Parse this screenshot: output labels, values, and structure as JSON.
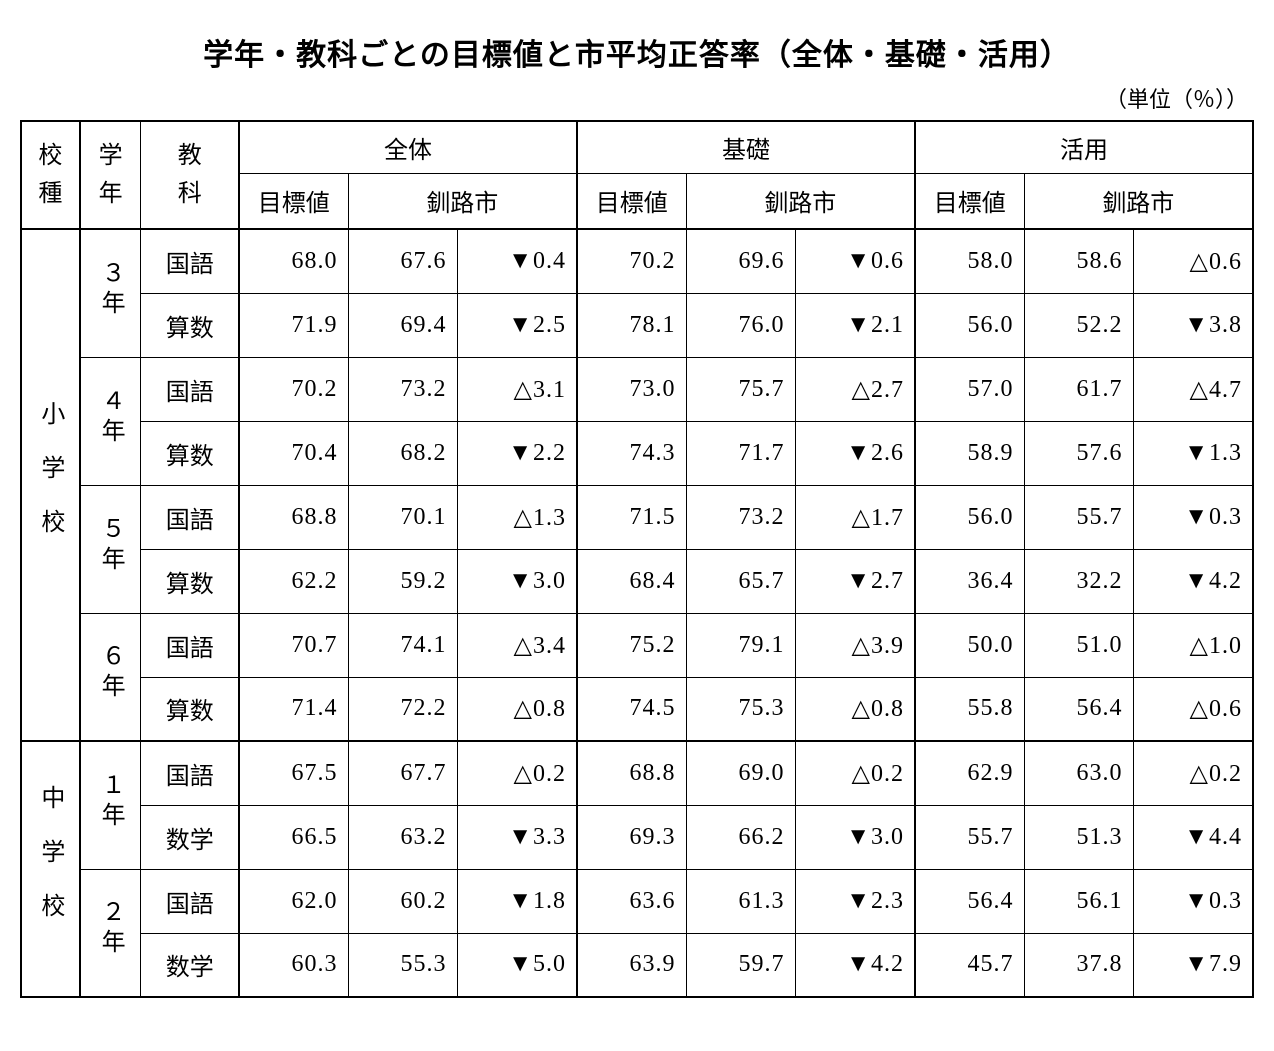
{
  "title": "学年・教科ごとの目標値と市平均正答率（全体・基礎・活用）",
  "unit": "（単位（％））",
  "header": {
    "school_type": "校種",
    "grade": "学年",
    "subject": "教科",
    "groups": [
      "全体",
      "基礎",
      "活用"
    ],
    "target": "目標値",
    "city": "釧路市"
  },
  "schools": [
    {
      "name": "小学校",
      "grades": [
        {
          "name": "３年",
          "rows": [
            {
              "subject": "国語",
              "zentai": {
                "target": "68.0",
                "city": "67.6",
                "diff": "▼0.4"
              },
              "kiso": {
                "target": "70.2",
                "city": "69.6",
                "diff": "▼0.6"
              },
              "katsuyo": {
                "target": "58.0",
                "city": "58.6",
                "diff": "△0.6"
              }
            },
            {
              "subject": "算数",
              "zentai": {
                "target": "71.9",
                "city": "69.4",
                "diff": "▼2.5"
              },
              "kiso": {
                "target": "78.1",
                "city": "76.0",
                "diff": "▼2.1"
              },
              "katsuyo": {
                "target": "56.0",
                "city": "52.2",
                "diff": "▼3.8"
              }
            }
          ]
        },
        {
          "name": "４年",
          "rows": [
            {
              "subject": "国語",
              "zentai": {
                "target": "70.2",
                "city": "73.2",
                "diff": "△3.1"
              },
              "kiso": {
                "target": "73.0",
                "city": "75.7",
                "diff": "△2.7"
              },
              "katsuyo": {
                "target": "57.0",
                "city": "61.7",
                "diff": "△4.7"
              }
            },
            {
              "subject": "算数",
              "zentai": {
                "target": "70.4",
                "city": "68.2",
                "diff": "▼2.2"
              },
              "kiso": {
                "target": "74.3",
                "city": "71.7",
                "diff": "▼2.6"
              },
              "katsuyo": {
                "target": "58.9",
                "city": "57.6",
                "diff": "▼1.3"
              }
            }
          ]
        },
        {
          "name": "５年",
          "rows": [
            {
              "subject": "国語",
              "zentai": {
                "target": "68.8",
                "city": "70.1",
                "diff": "△1.3"
              },
              "kiso": {
                "target": "71.5",
                "city": "73.2",
                "diff": "△1.7"
              },
              "katsuyo": {
                "target": "56.0",
                "city": "55.7",
                "diff": "▼0.3"
              }
            },
            {
              "subject": "算数",
              "zentai": {
                "target": "62.2",
                "city": "59.2",
                "diff": "▼3.0"
              },
              "kiso": {
                "target": "68.4",
                "city": "65.7",
                "diff": "▼2.7"
              },
              "katsuyo": {
                "target": "36.4",
                "city": "32.2",
                "diff": "▼4.2"
              }
            }
          ]
        },
        {
          "name": "６年",
          "rows": [
            {
              "subject": "国語",
              "zentai": {
                "target": "70.7",
                "city": "74.1",
                "diff": "△3.4"
              },
              "kiso": {
                "target": "75.2",
                "city": "79.1",
                "diff": "△3.9"
              },
              "katsuyo": {
                "target": "50.0",
                "city": "51.0",
                "diff": "△1.0"
              }
            },
            {
              "subject": "算数",
              "zentai": {
                "target": "71.4",
                "city": "72.2",
                "diff": "△0.8"
              },
              "kiso": {
                "target": "74.5",
                "city": "75.3",
                "diff": "△0.8"
              },
              "katsuyo": {
                "target": "55.8",
                "city": "56.4",
                "diff": "△0.6"
              }
            }
          ]
        }
      ]
    },
    {
      "name": "中学校",
      "grades": [
        {
          "name": "１年",
          "rows": [
            {
              "subject": "国語",
              "zentai": {
                "target": "67.5",
                "city": "67.7",
                "diff": "△0.2"
              },
              "kiso": {
                "target": "68.8",
                "city": "69.0",
                "diff": "△0.2"
              },
              "katsuyo": {
                "target": "62.9",
                "city": "63.0",
                "diff": "△0.2"
              }
            },
            {
              "subject": "数学",
              "zentai": {
                "target": "66.5",
                "city": "63.2",
                "diff": "▼3.3"
              },
              "kiso": {
                "target": "69.3",
                "city": "66.2",
                "diff": "▼3.0"
              },
              "katsuyo": {
                "target": "55.7",
                "city": "51.3",
                "diff": "▼4.4"
              }
            }
          ]
        },
        {
          "name": "２年",
          "rows": [
            {
              "subject": "国語",
              "zentai": {
                "target": "62.0",
                "city": "60.2",
                "diff": "▼1.8"
              },
              "kiso": {
                "target": "63.6",
                "city": "61.3",
                "diff": "▼2.3"
              },
              "katsuyo": {
                "target": "56.4",
                "city": "56.1",
                "diff": "▼0.3"
              }
            },
            {
              "subject": "数学",
              "zentai": {
                "target": "60.3",
                "city": "55.3",
                "diff": "▼5.0"
              },
              "kiso": {
                "target": "63.9",
                "city": "59.7",
                "diff": "▼4.2"
              },
              "katsuyo": {
                "target": "45.7",
                "city": "37.8",
                "diff": "▼7.9"
              }
            }
          ]
        }
      ]
    }
  ],
  "style": {
    "type": "table",
    "background_color": "#ffffff",
    "border_color": "#000000",
    "text_color": "#000000",
    "title_fontsize_pt": 22,
    "body_fontsize_pt": 18,
    "marker_up": "△",
    "marker_down": "▼"
  }
}
